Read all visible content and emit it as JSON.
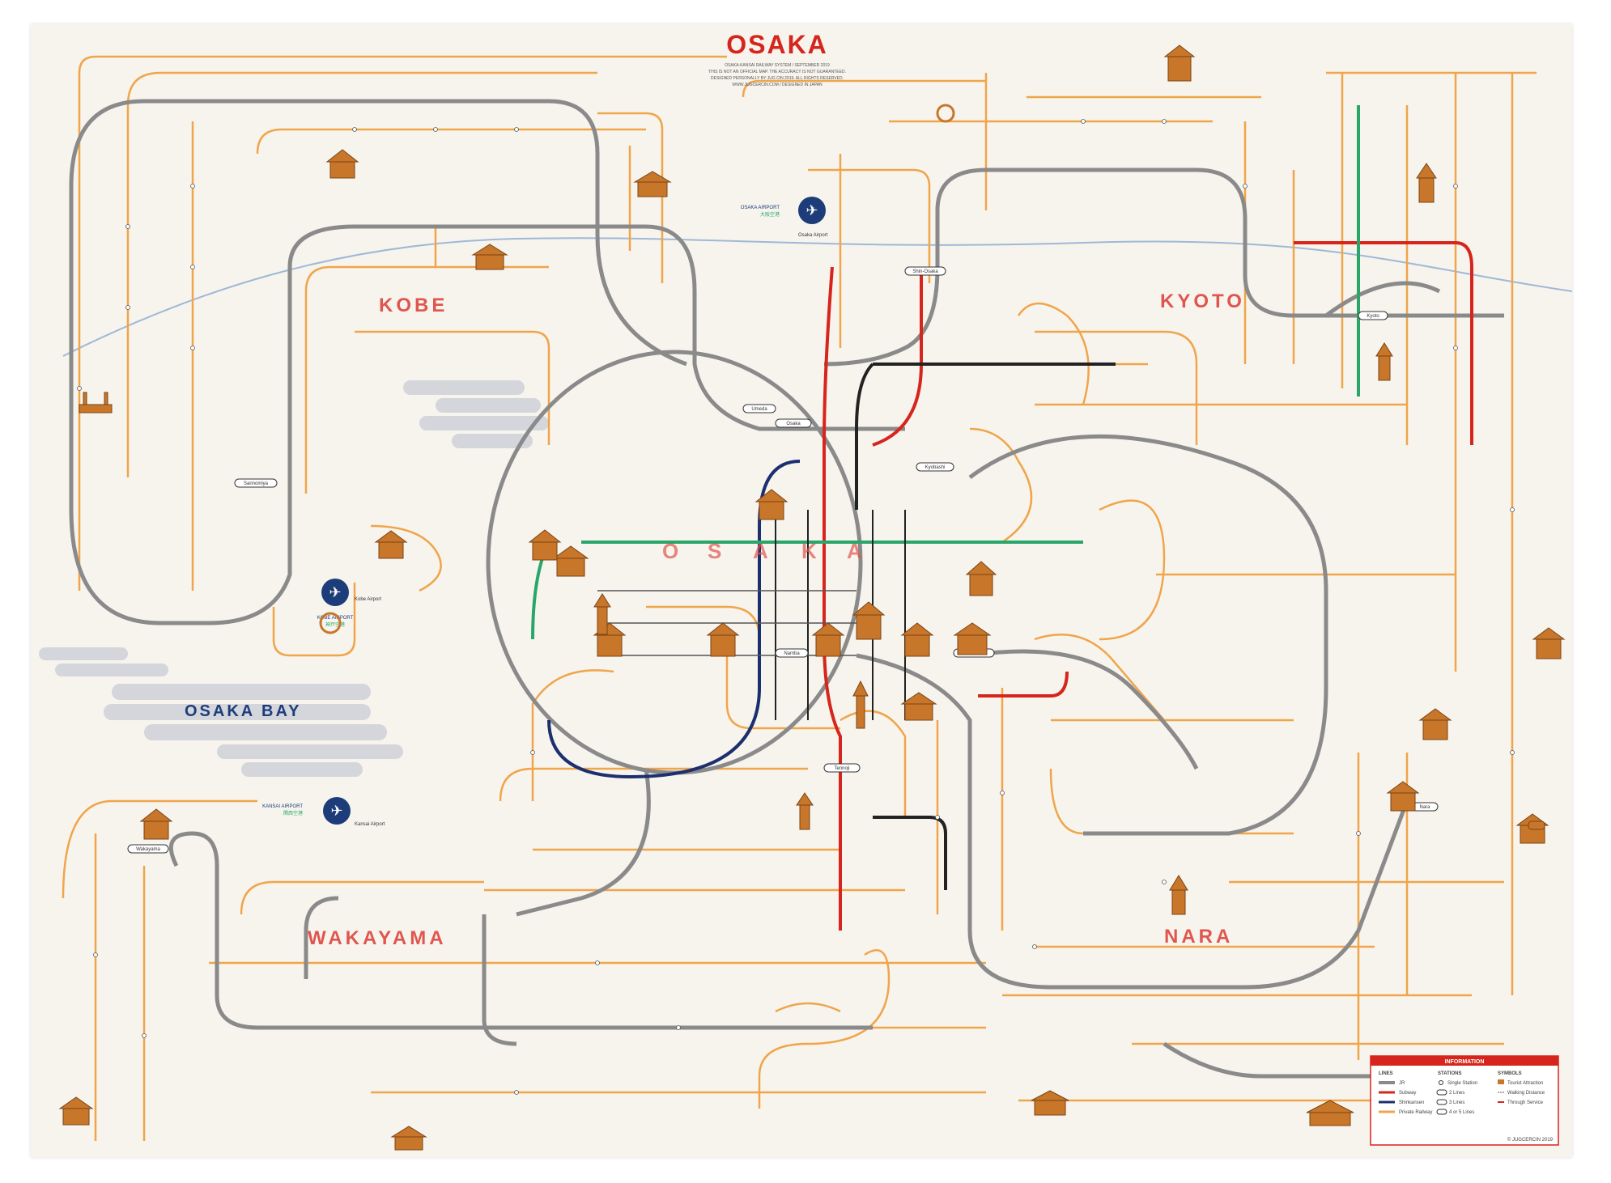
{
  "map": {
    "title": "OSAKA",
    "subtitle_lines": [
      "OSAKA-KANSAI RAILWAY SYSTEM / SEPTEMBER 2019",
      "THIS IS NOT AN OFFICIAL MAP. THE ACCURACY IS NOT GUARANTEED.",
      "DESIGNED PERSONALLY BY JUG CIN 2019. ALL RIGHTS RESERVED.",
      "WWW.JUGCERCIN.COM / DESIGNED IN JAPAN"
    ],
    "regions": {
      "osaka": [
        "O",
        "S",
        "A",
        "K",
        "A"
      ],
      "kobe": "KOBE",
      "kyoto": "KYOTO",
      "wakayama": "WAKAYAMA",
      "nara": "NARA",
      "osaka_bay": "OSAKA BAY"
    },
    "airports": [
      {
        "name": "OSAKA AIRPORT",
        "jp": "大阪空港"
      },
      {
        "name": "KOBE AIRPORT",
        "jp": "神戸空港"
      },
      {
        "name": "KANSAI AIRPORT",
        "jp": "関西空港"
      }
    ],
    "stations": {
      "osaka": "Osaka",
      "umeda": "Umeda",
      "namba": "Namba",
      "tennoji": "Tennoji",
      "kyoto": "Kyoto",
      "nara": "Nara",
      "wakayama": "Wakayama",
      "sannomiya": "Sannomiya",
      "kansai_airport": "Kansai Airport",
      "kobe_airport": "Kobe Airport",
      "osaka_airport": "Osaka Airport",
      "kyobashi": "Kyobashi",
      "tsuruhashi": "Tsuruhashi",
      "shin_osaka": "Shin-Osaka"
    },
    "legend": {
      "title": "INFORMATION",
      "cols": [
        "LINES",
        "STATIONS",
        "SYMBOLS"
      ],
      "lines_items": [
        "JR",
        "Subway",
        "Shinkansen",
        "Private Railway"
      ],
      "stations_items": [
        "Single Station",
        "2 Lines",
        "3 Lines",
        "4 or 5 Lines"
      ],
      "symbols_items": [
        "Tourist Attraction",
        "Walking Distance",
        "Through Service"
      ],
      "copyright": "© JUGCERCIN 2019"
    },
    "colors": {
      "jr": "#8a8a8a",
      "private": "#f0a54a",
      "subway_red": "#d6251c",
      "subway_navy": "#1c2f6e",
      "subway_green": "#2aa66a",
      "subway_black": "#222222",
      "river": "#8aa9cf",
      "title_red": "#d6251c",
      "region_red": "#e0564f",
      "airport_blue": "#1c3d7a",
      "cloud": "#c9ccd6"
    }
  }
}
